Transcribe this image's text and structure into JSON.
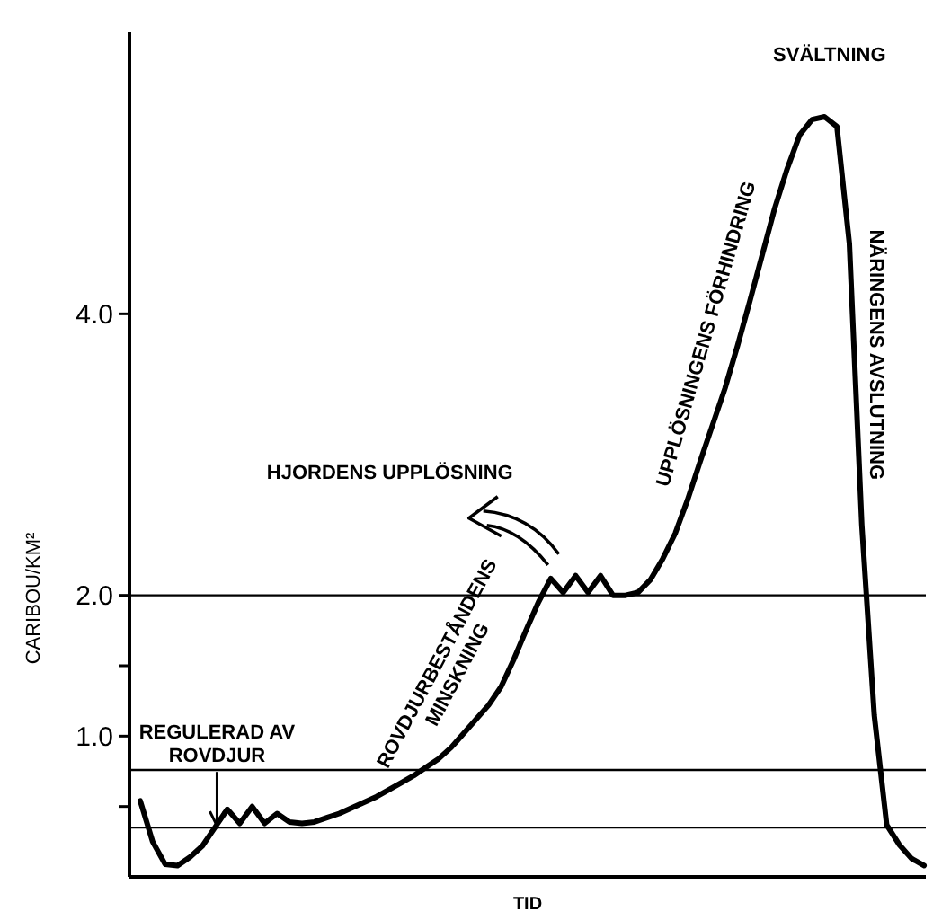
{
  "chart_data": {
    "type": "line",
    "xlabel": "TID",
    "ylabel": "CARIBOU/KM²",
    "ylim": [
      0,
      6
    ],
    "yticks": [
      {
        "value": 0.5,
        "label": null
      },
      {
        "value": 1,
        "label": "1.0"
      },
      {
        "value": 1.5,
        "label": null
      },
      {
        "value": 2,
        "label": "2.0"
      },
      {
        "value": 4,
        "label": "4.0"
      }
    ],
    "tick_labels": "y",
    "marker": "none",
    "line_style": "solid",
    "categories": [
      null,
      null,
      null,
      null,
      null,
      null,
      null,
      null,
      null,
      null,
      null,
      null,
      null,
      null,
      null,
      null,
      null,
      null,
      null,
      null,
      null,
      null,
      null,
      null,
      null,
      null,
      null,
      null,
      null,
      null,
      null,
      null,
      null,
      null,
      null,
      null,
      null,
      null,
      null,
      null,
      null,
      null,
      null,
      null,
      null,
      null,
      null,
      null,
      null,
      null,
      null,
      null,
      null,
      null,
      null,
      null,
      null,
      null,
      null,
      null,
      null,
      null,
      null,
      null
    ],
    "series": [
      {
        "color": "#000000",
        "values": [
          0.54,
          0.25,
          0.09,
          0.08,
          0.14,
          0.22,
          0.35,
          0.48,
          0.38,
          0.5,
          0.38,
          0.45,
          0.39,
          0.38,
          0.39,
          0.42,
          0.45,
          0.49,
          0.53,
          0.57,
          0.62,
          0.67,
          0.72,
          0.78,
          0.84,
          0.92,
          1.02,
          1.12,
          1.22,
          1.35,
          1.54,
          1.75,
          1.95,
          2.12,
          2.02,
          2.14,
          2.02,
          2.14,
          2.0,
          2.0,
          2.02,
          2.11,
          2.26,
          2.44,
          2.68,
          2.95,
          3.21,
          3.47,
          3.77,
          4.09,
          4.42,
          4.75,
          5.03,
          5.27,
          5.38,
          5.4,
          5.33,
          4.5,
          2.5,
          1.15,
          0.37,
          0.23,
          0.13,
          0.08
        ]
      }
    ],
    "ref_lines": [
      {
        "axis": "y",
        "value": 2,
        "label": null,
        "color": "#000000"
      },
      {
        "axis": "y",
        "value": 0.76,
        "label": null,
        "color": "#000000"
      },
      {
        "axis": "y",
        "value": 0.35,
        "label": null,
        "color": "#000000"
      }
    ],
    "annotations": [
      "REGULERAD AV\nROVDJUR",
      "HJORDENS UPPLÖSNING",
      "ROVDJURBESTÅNDENS\nMINSKNING",
      "UPPLÖSNINGENS FÖRHINDRING",
      "SVÄLTNING",
      "NÄRINGENS AVSLUTNING"
    ]
  }
}
